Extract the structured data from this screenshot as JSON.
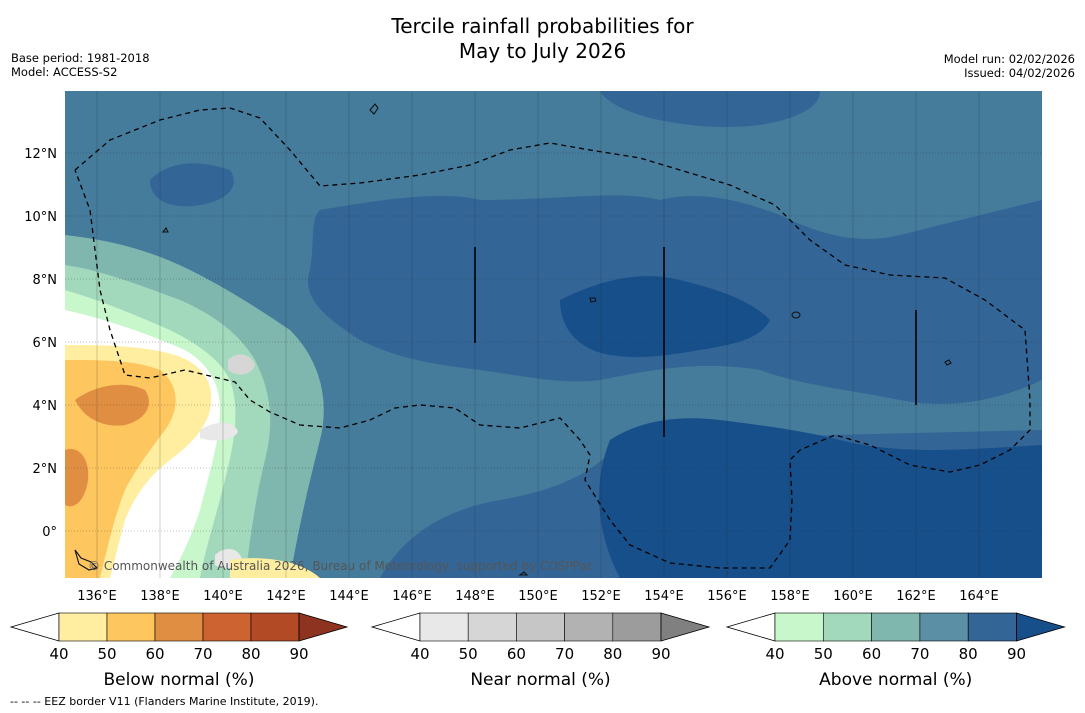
{
  "title_line1": "Tercile rainfall probabilities for",
  "title_line2": "May to July 2026",
  "meta": {
    "base_period": "Base period: 1981-2018",
    "model": "Model: ACCESS-S2",
    "model_run": "Model run: 02/02/2026",
    "issued": "Issued: 04/02/2026"
  },
  "map": {
    "lat_ticks": [
      "12°N",
      "10°N",
      "8°N",
      "6°N",
      "4°N",
      "2°N",
      "0°"
    ],
    "lon_ticks": [
      "136°E",
      "138°E",
      "140°E",
      "142°E",
      "144°E",
      "146°E",
      "148°E",
      "150°E",
      "152°E",
      "154°E",
      "156°E",
      "158°E",
      "160°E",
      "162°E",
      "164°E"
    ],
    "copyright": "© Commonwealth of Australia 2026, Bureau of Meteorology, supported by COSPPac"
  },
  "colorbars": [
    {
      "title": "Below normal (%)",
      "ticks": [
        "40",
        "50",
        "60",
        "70",
        "80",
        "90"
      ],
      "colors": [
        "#ffeda0",
        "#fdc65f",
        "#e08f42",
        "#cc6330",
        "#b24a25",
        "#8e3320"
      ]
    },
    {
      "title": "Near normal (%)",
      "ticks": [
        "40",
        "50",
        "60",
        "70",
        "80",
        "90"
      ],
      "colors": [
        "#e8e8e8",
        "#d6d6d6",
        "#c6c6c6",
        "#b2b2b2",
        "#9c9c9c",
        "#808080"
      ]
    },
    {
      "title": "Above normal (%)",
      "ticks": [
        "40",
        "50",
        "60",
        "70",
        "80",
        "90"
      ],
      "colors": [
        "#c7f7cb",
        "#a2d8bb",
        "#7fb7af",
        "#5a8fa5",
        "#336696",
        "#174f8a"
      ]
    }
  ],
  "footnote": "--  --  -- EEZ border V11 (Flanders Marine Institute, 2019)."
}
